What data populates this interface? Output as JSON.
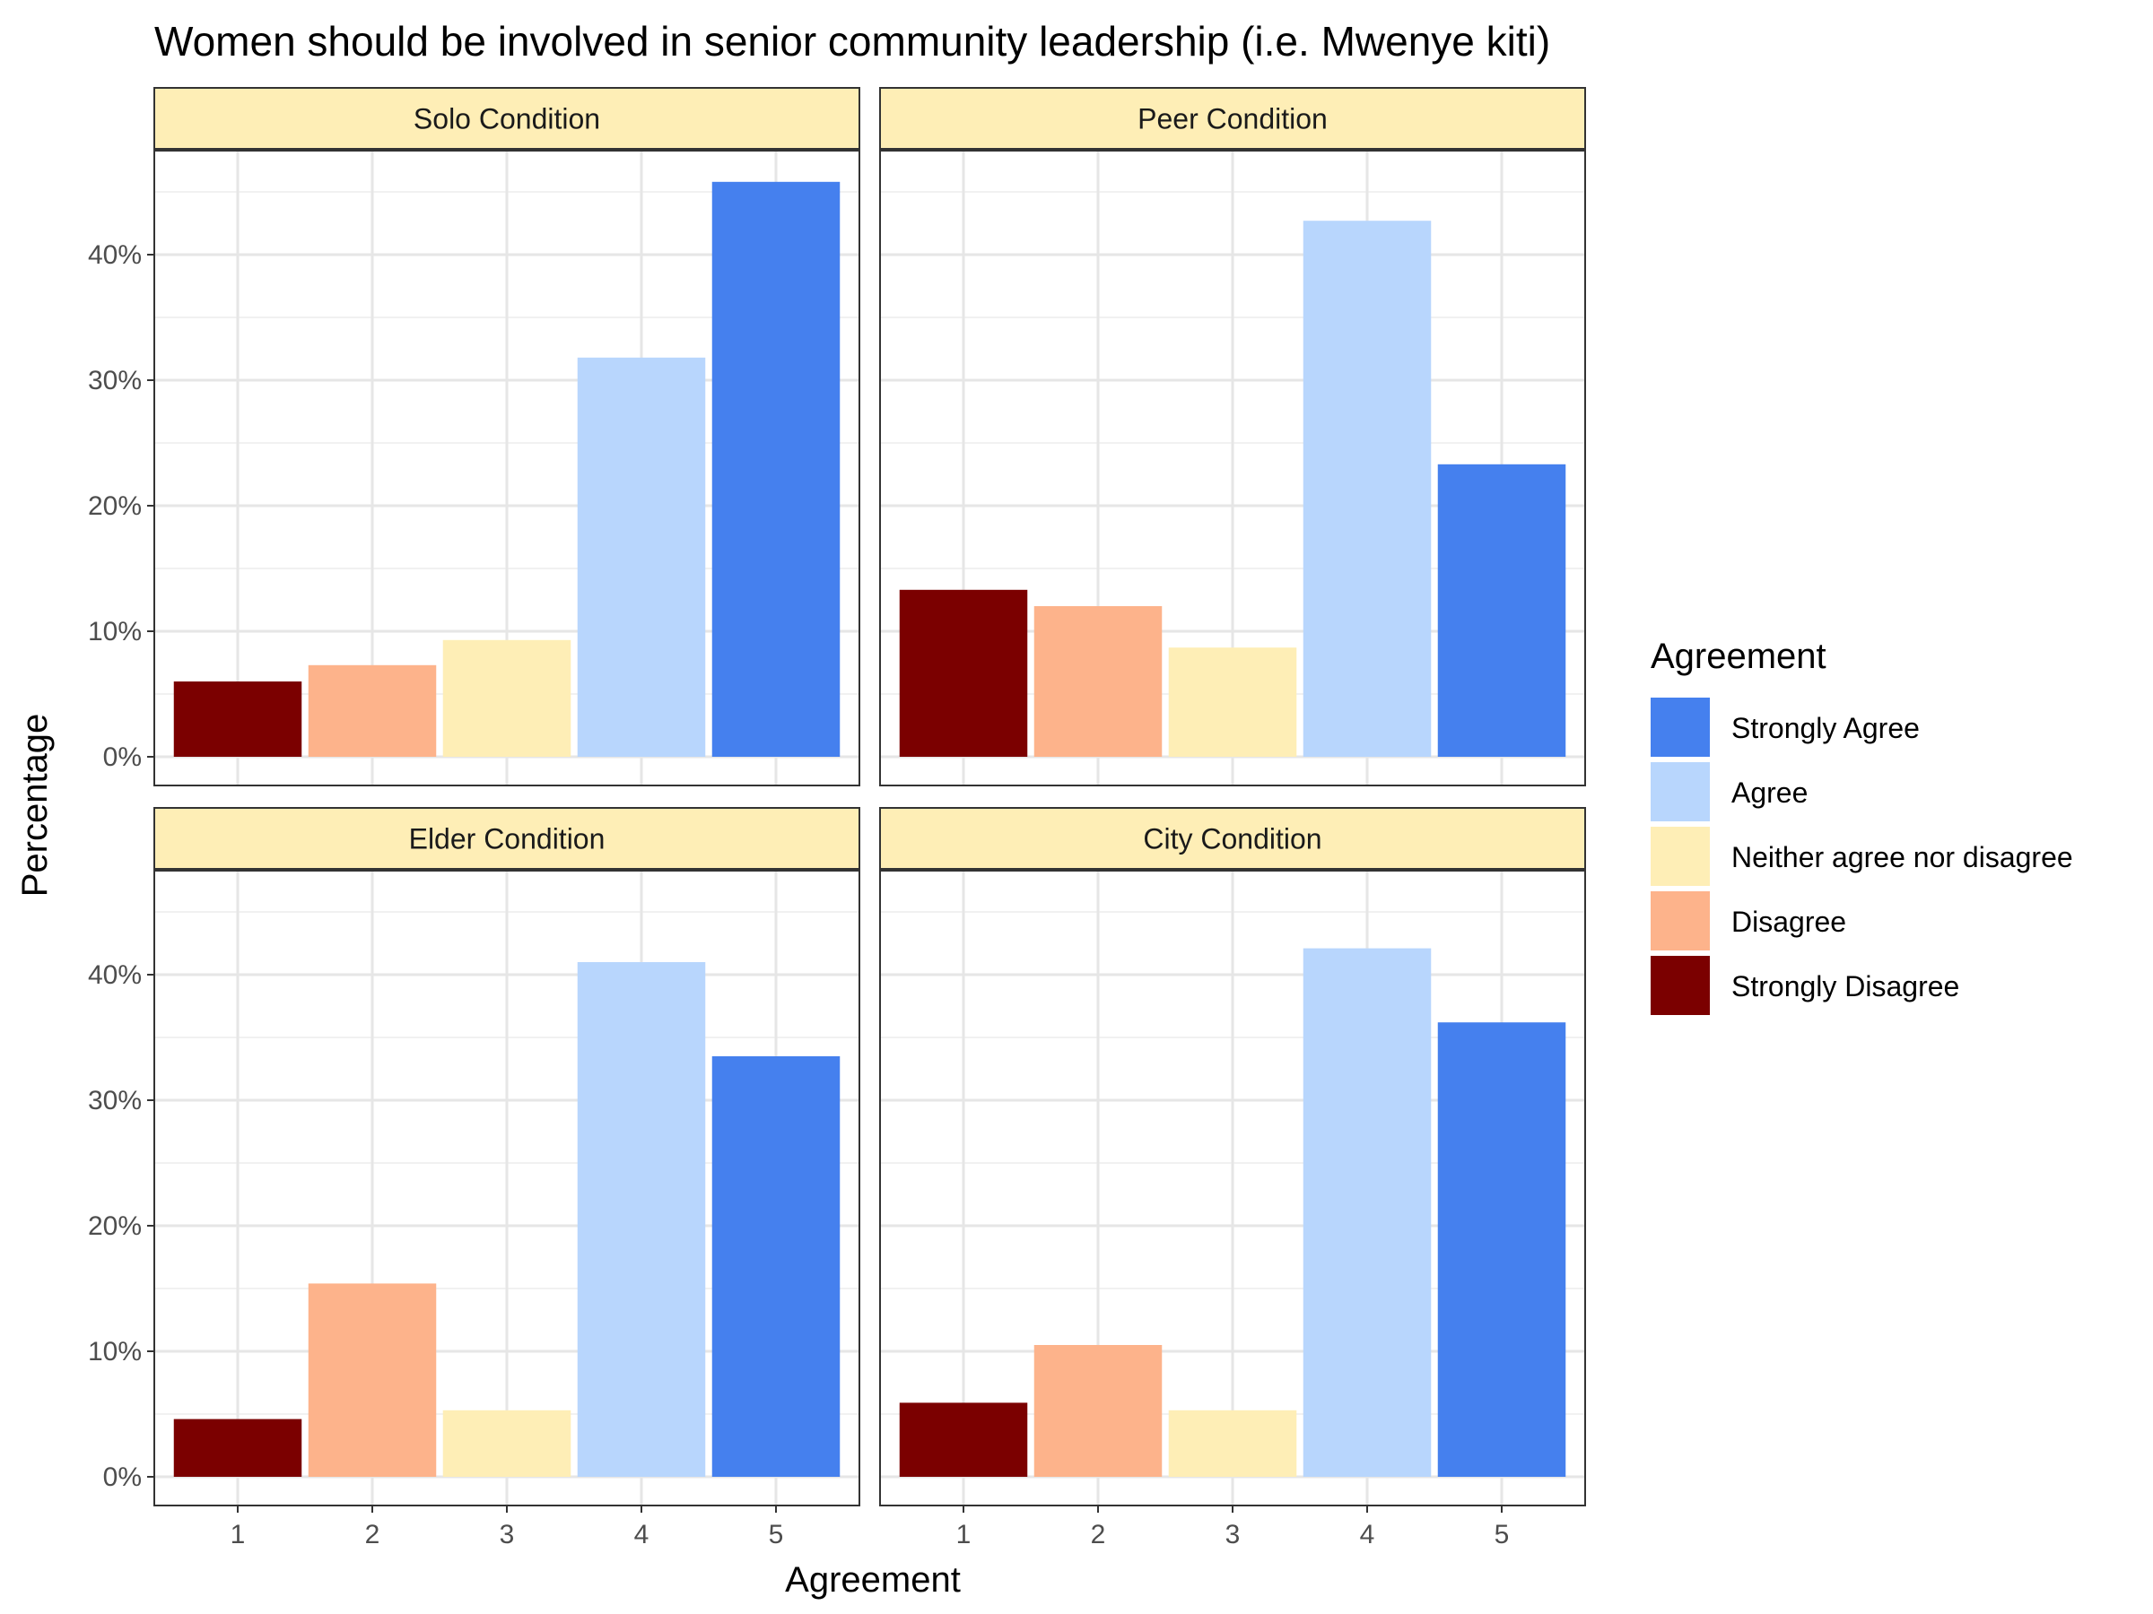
{
  "chart_data": {
    "type": "bar",
    "title": "Women should be involved in senior community leadership (i.e. Mwenye kiti)",
    "xlabel": "Agreement",
    "ylabel": "Percentage",
    "categories": [
      "1",
      "2",
      "3",
      "4",
      "5"
    ],
    "y_ticks": [
      "0%",
      "10%",
      "20%",
      "30%",
      "40%"
    ],
    "ylim": [
      0,
      48
    ],
    "grid": true,
    "legend": {
      "title": "Agreement",
      "placement": "right",
      "items": [
        {
          "label": "Strongly Agree",
          "color": "#4580ee"
        },
        {
          "label": "Agree",
          "color": "#b8d6fd"
        },
        {
          "label": "Neither agree nor disagree",
          "color": "#feeeb6"
        },
        {
          "label": "Disagree",
          "color": "#fdb38b"
        },
        {
          "label": "Strongly Disagree",
          "color": "#7b0000"
        }
      ]
    },
    "category_colors": [
      "#7b0000",
      "#fdb38b",
      "#feeeb6",
      "#b8d6fd",
      "#4580ee"
    ],
    "panels": [
      {
        "name": "Solo Condition",
        "values": [
          6.0,
          7.3,
          9.3,
          31.8,
          45.8
        ]
      },
      {
        "name": "Peer Condition",
        "values": [
          13.3,
          12.0,
          8.7,
          42.7,
          23.3
        ]
      },
      {
        "name": "Elder Condition",
        "values": [
          4.6,
          15.4,
          5.3,
          41.0,
          33.5
        ]
      },
      {
        "name": "City Condition",
        "values": [
          5.9,
          10.5,
          5.3,
          42.1,
          36.2
        ]
      }
    ]
  }
}
